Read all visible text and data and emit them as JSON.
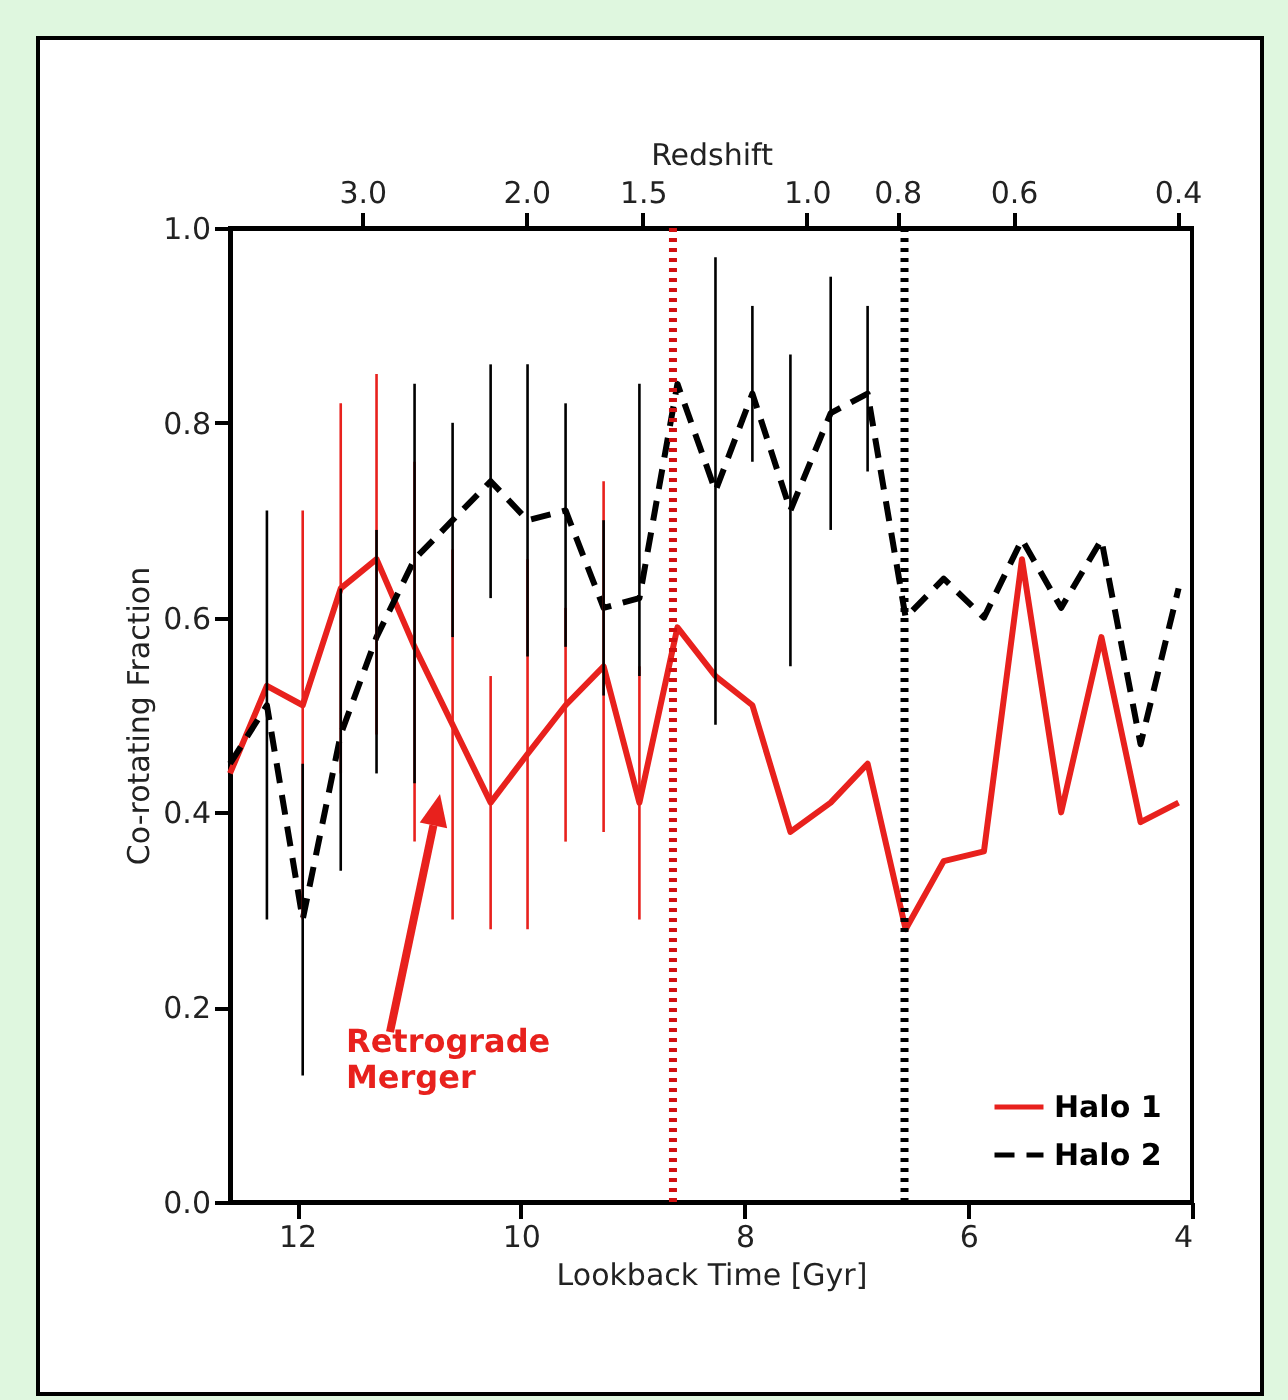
{
  "chart_data": {
    "type": "line",
    "xlabel": "Lookback Time [Gyr]",
    "ylabel": "Co-rotating Fraction",
    "x2label": "Redshift",
    "x": [
      12.6,
      12.27,
      11.95,
      11.61,
      11.29,
      10.95,
      10.61,
      10.27,
      9.94,
      9.6,
      9.26,
      8.94,
      8.6,
      8.26,
      7.93,
      7.59,
      7.23,
      6.9,
      6.56,
      6.22,
      5.86,
      5.52,
      5.17,
      4.81,
      4.46,
      4.12
    ],
    "series": [
      {
        "name": "Halo 1",
        "color": "#e8211d",
        "line_style": "solid",
        "values": [
          0.44,
          0.53,
          0.51,
          0.63,
          0.66,
          0.57,
          0.49,
          0.41,
          0.46,
          0.51,
          0.55,
          0.41,
          0.59,
          0.54,
          0.51,
          0.38,
          0.41,
          0.45,
          0.28,
          0.35,
          0.36,
          0.66,
          0.4,
          0.58,
          0.39,
          0.41
        ],
        "errors": [
          null,
          null,
          [
            0.29,
            0.71
          ],
          [
            0.44,
            0.82
          ],
          [
            0.48,
            0.85
          ],
          [
            0.37,
            0.76
          ],
          [
            0.29,
            0.67
          ],
          [
            0.28,
            0.54
          ],
          [
            0.28,
            0.66
          ],
          [
            0.37,
            0.61
          ],
          [
            0.38,
            0.74
          ],
          [
            0.29,
            0.55
          ],
          null,
          null,
          null,
          null,
          null,
          null,
          null,
          null,
          null,
          null,
          null,
          null,
          null,
          null
        ]
      },
      {
        "name": "Halo 2",
        "color": "#000000",
        "line_style": "dashed",
        "values": [
          0.45,
          0.51,
          0.29,
          0.48,
          0.58,
          0.66,
          0.7,
          0.74,
          0.7,
          0.71,
          0.61,
          0.62,
          0.84,
          0.73,
          0.83,
          0.71,
          0.81,
          0.83,
          0.6,
          0.64,
          0.6,
          0.68,
          0.61,
          0.68,
          0.47,
          0.63
        ],
        "errors": [
          null,
          [
            0.29,
            0.71
          ],
          [
            0.13,
            0.45
          ],
          [
            0.34,
            0.63
          ],
          [
            0.44,
            0.69
          ],
          [
            0.43,
            0.84
          ],
          [
            0.58,
            0.8
          ],
          [
            0.62,
            0.86
          ],
          [
            0.56,
            0.86
          ],
          [
            0.57,
            0.82
          ],
          [
            0.52,
            0.7
          ],
          [
            0.54,
            0.84
          ],
          null,
          [
            0.49,
            0.97
          ],
          [
            0.76,
            0.92
          ],
          [
            0.55,
            0.87
          ],
          [
            0.69,
            0.95
          ],
          [
            0.75,
            0.92
          ],
          null,
          null,
          null,
          null,
          null,
          null,
          null,
          null
        ]
      }
    ],
    "xlim": [
      12.6,
      4
    ],
    "xticks": [
      12,
      10,
      8,
      6,
      4
    ],
    "x2lim": [
      4.16,
      0.386
    ],
    "x2ticks": [
      {
        "value": 3,
        "label": "3.0"
      },
      {
        "value": 2,
        "label": "2.0"
      },
      1.5,
      {
        "value": 1,
        "label": "1.0"
      },
      0.8,
      0.6,
      0.4
    ],
    "log": "x2",
    "ylim": [
      0,
      1
    ],
    "yticks": [
      {
        "value": 0,
        "label": "0.0"
      },
      {
        "value": 0.2,
        "label": "0.2"
      },
      {
        "value": 0.4,
        "label": "0.4"
      },
      {
        "value": 0.6,
        "label": "0.6"
      },
      {
        "value": 0.8,
        "label": "0.8"
      },
      {
        "value": 1,
        "label": "1.0"
      }
    ],
    "ref_lines": [
      {
        "axis": "x",
        "value": 8.64,
        "color": "#d01010",
        "line_style": "dotted"
      },
      {
        "axis": "x",
        "value": 6.57,
        "color": "#000000",
        "line_style": "dotted"
      }
    ],
    "annotations": [
      "Retrograde Merger"
    ],
    "grid": false,
    "legend": "bottom right"
  }
}
